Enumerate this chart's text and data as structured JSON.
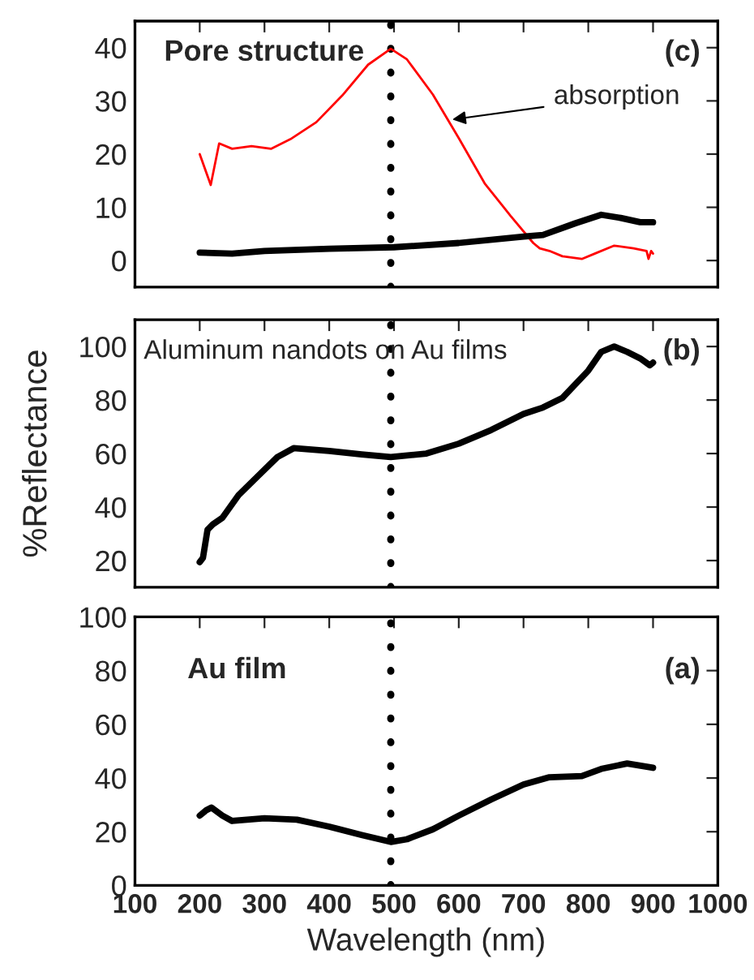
{
  "chart_data": [
    {
      "type": "line",
      "xlim": [
        100,
        1000
      ],
      "xticks": [
        100,
        200,
        300,
        400,
        500,
        600,
        700,
        800,
        900,
        1000
      ],
      "ylim": [
        -5,
        45
      ],
      "yticks": [
        0,
        10,
        20,
        30,
        40
      ],
      "tick_labels": "y",
      "annotations": [
        "Pore structure",
        "(c)",
        {
          "text": "absorption",
          "x": 590,
          "y": 26.5
        }
      ],
      "ref_lines": [
        {
          "axis": "x",
          "value": 495,
          "color": "#000000",
          "line_style": "dotted"
        }
      ],
      "series": [
        {
          "color": "#ff0000",
          "x": [
            200,
            217,
            230,
            250,
            280,
            310,
            340,
            380,
            420,
            460,
            495,
            520,
            560,
            600,
            640,
            680,
            715,
            725,
            740,
            760,
            790,
            810,
            840,
            870,
            890,
            893,
            897,
            900
          ],
          "values": [
            20.0,
            14.2,
            22,
            21,
            21.5,
            21,
            22.8,
            26,
            31,
            36.8,
            39.8,
            37.8,
            31.2,
            23,
            14.5,
            8.4,
            3.3,
            2.3,
            1.8,
            0.8,
            0.3,
            1.3,
            2.8,
            2.3,
            1.8,
            0.3,
            1.8,
            1.3
          ]
        },
        {
          "color": "#000000",
          "x": [
            200,
            250,
            300,
            400,
            500,
            600,
            700,
            730,
            780,
            820,
            850,
            880,
            900
          ],
          "values": [
            1.5,
            1.3,
            1.8,
            2.2,
            2.5,
            3.3,
            4.5,
            4.8,
            7,
            8.6,
            8,
            7.2,
            7.2
          ]
        }
      ]
    },
    {
      "type": "line",
      "xlim": [
        100,
        1000
      ],
      "xticks": [
        100,
        200,
        300,
        400,
        500,
        600,
        700,
        800,
        900,
        1000
      ],
      "ylim": [
        10,
        110
      ],
      "yticks": [
        20,
        40,
        60,
        80,
        100
      ],
      "tick_labels": "y",
      "ylabel": "%Reflectance",
      "annotations": [
        "Aluminum nandots on Au films",
        "(b)"
      ],
      "ref_lines": [
        {
          "axis": "x",
          "value": 495,
          "color": "#000000",
          "line_style": "dotted"
        }
      ],
      "series": [
        {
          "color": "#000000",
          "x": [
            200,
            205,
            212,
            220,
            235,
            260,
            290,
            320,
            345,
            400,
            450,
            495,
            550,
            600,
            650,
            700,
            730,
            760,
            800,
            820,
            840,
            860,
            880,
            895,
            900
          ],
          "values": [
            19.4,
            21,
            31.5,
            33.5,
            36,
            44.5,
            51.6,
            58.7,
            62,
            61,
            59.7,
            58.7,
            60,
            63.7,
            68.8,
            74.8,
            77.2,
            80.8,
            91,
            98,
            100,
            98,
            95.6,
            93,
            94
          ]
        }
      ]
    },
    {
      "type": "line",
      "xlim": [
        100,
        1000
      ],
      "xticks": [
        100,
        200,
        300,
        400,
        500,
        600,
        700,
        800,
        900,
        1000
      ],
      "ylim": [
        0,
        100
      ],
      "yticks": [
        0,
        20,
        40,
        60,
        80,
        100
      ],
      "xlabel": "Wavelength (nm)",
      "annotations": [
        "Au film",
        "(a)"
      ],
      "ref_lines": [
        {
          "axis": "x",
          "value": 495,
          "color": "#000000",
          "line_style": "dotted"
        }
      ],
      "series": [
        {
          "color": "#000000",
          "x": [
            200,
            210,
            218,
            235,
            250,
            300,
            350,
            400,
            450,
            495,
            520,
            560,
            600,
            650,
            700,
            740,
            790,
            820,
            860,
            900
          ],
          "values": [
            26,
            28,
            29,
            26,
            24,
            25,
            24.5,
            21.9,
            18.8,
            16.2,
            17.2,
            20.9,
            26,
            32,
            37.6,
            40.3,
            40.7,
            43.4,
            45.4,
            43.8
          ]
        }
      ]
    }
  ]
}
